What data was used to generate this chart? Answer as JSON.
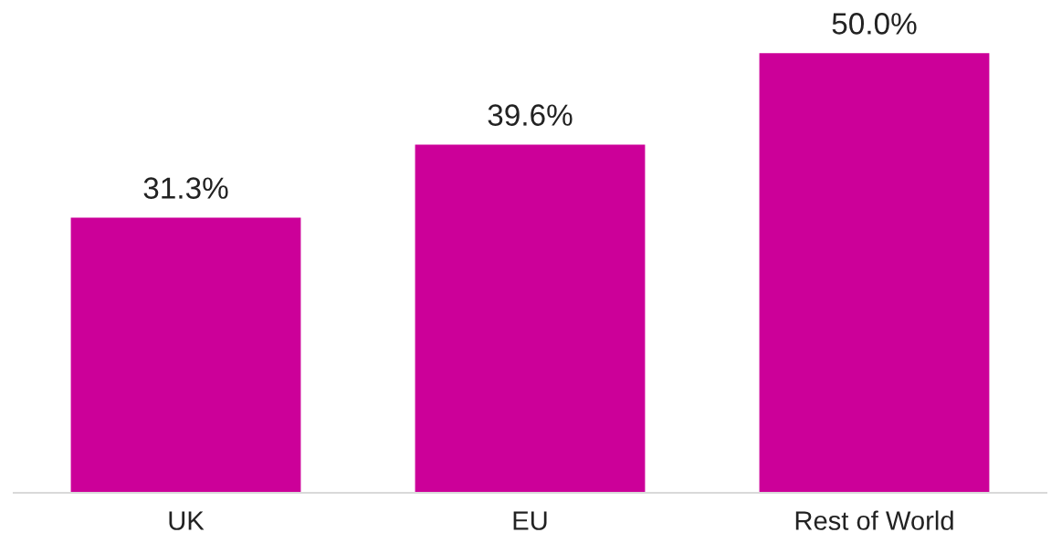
{
  "chart_data": {
    "type": "bar",
    "categories": [
      "UK",
      "EU",
      "Rest of World"
    ],
    "values": [
      31.3,
      39.6,
      50.0
    ],
    "value_labels": [
      "31.3%",
      "39.6%",
      "50.0%"
    ],
    "color": "#cc0099",
    "grid": false,
    "legend": false
  }
}
